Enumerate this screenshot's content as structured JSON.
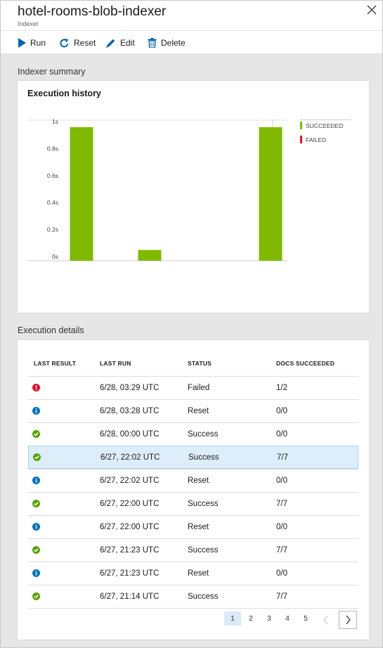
{
  "header": {
    "title": "hotel-rooms-blob-indexer",
    "subtitle": "Indexer",
    "close_icon": "close-icon"
  },
  "toolbar": {
    "run_label": "Run",
    "reset_label": "Reset",
    "edit_label": "Edit",
    "delete_label": "Delete"
  },
  "summary": {
    "section_label": "Indexer summary",
    "chart_title": "Execution history",
    "legend": [
      {
        "label": "SUCCEEDED",
        "color": "#7fba00"
      },
      {
        "label": "FAILED",
        "color": "#e81123"
      }
    ]
  },
  "chart_data": {
    "type": "bar",
    "title": "Execution history",
    "ylim": [
      0,
      1
    ],
    "yticks": [
      "0s",
      "0.2s",
      "0.4s",
      "0.6s",
      "0.8s",
      "1s"
    ],
    "series": [
      {
        "name": "SUCCEEDED",
        "color": "#7fba00",
        "values": [
          0.99,
          0.08,
          0.99
        ]
      },
      {
        "name": "FAILED",
        "color": "#e81123",
        "values": [
          0,
          0,
          0
        ]
      }
    ],
    "legend": "right",
    "grid": false
  },
  "details": {
    "section_label": "Execution details",
    "columns": [
      "LAST RESULT",
      "LAST RUN",
      "STATUS",
      "DOCS SUCCEEDED"
    ],
    "rows": [
      {
        "icon": "error-icon",
        "last_run": "6/28, 03:29 UTC",
        "status": "Failed",
        "docs": "1/2"
      },
      {
        "icon": "info-icon",
        "last_run": "6/28, 03:28 UTC",
        "status": "Reset",
        "docs": "0/0"
      },
      {
        "icon": "success-icon",
        "last_run": "6/28, 00:00 UTC",
        "status": "Success",
        "docs": "0/0"
      },
      {
        "icon": "success-icon",
        "last_run": "6/27, 22:02 UTC",
        "status": "Success",
        "docs": "7/7"
      },
      {
        "icon": "info-icon",
        "last_run": "6/27, 22:02 UTC",
        "status": "Reset",
        "docs": "0/0"
      },
      {
        "icon": "success-icon",
        "last_run": "6/27, 22:00 UTC",
        "status": "Success",
        "docs": "7/7"
      },
      {
        "icon": "info-icon",
        "last_run": "6/27, 22:00 UTC",
        "status": "Reset",
        "docs": "0/0"
      },
      {
        "icon": "success-icon",
        "last_run": "6/27, 21:23 UTC",
        "status": "Success",
        "docs": "7/7"
      },
      {
        "icon": "info-icon",
        "last_run": "6/27, 21:23 UTC",
        "status": "Reset",
        "docs": "0/0"
      },
      {
        "icon": "success-icon",
        "last_run": "6/27, 21:14 UTC",
        "status": "Success",
        "docs": "7/7"
      }
    ],
    "selected_row_index": 3,
    "pager": {
      "pages": [
        "1",
        "2",
        "3",
        "4",
        "5"
      ],
      "current": "1",
      "prev_icon": "chevron-left-icon",
      "next_icon": "chevron-right-icon"
    }
  },
  "colors": {
    "success": "#57a300",
    "info": "#0072c6",
    "error": "#e81123",
    "accent": "#0063b1"
  }
}
